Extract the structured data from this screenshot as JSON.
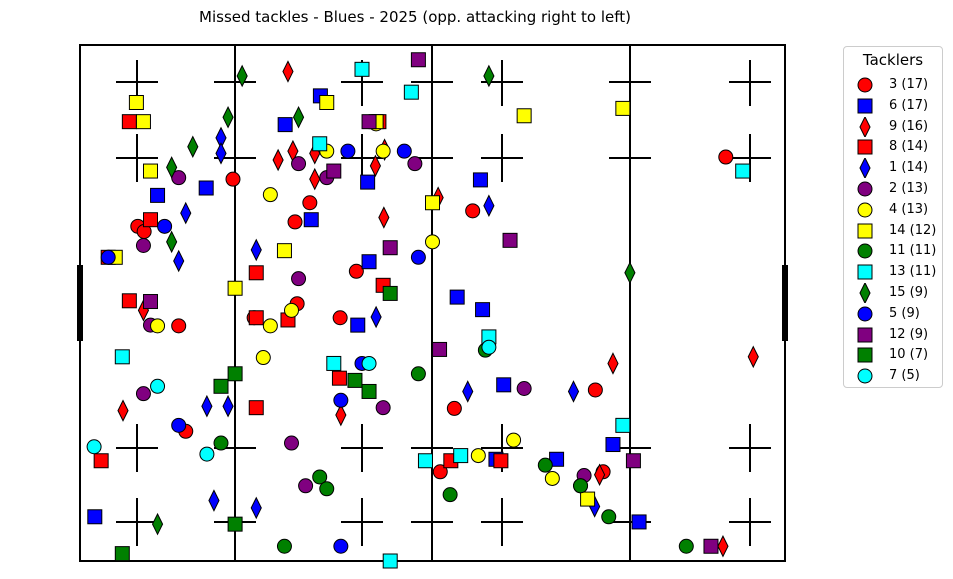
{
  "chart_data": {
    "type": "scatter",
    "title": "Missed tackles - Blues - 2025  (opp. attacking right to left)",
    "xlabel": "",
    "ylabel": "",
    "xlim": [
      0,
      100
    ],
    "ylim": [
      0,
      70
    ],
    "grid": false,
    "legend": {
      "title": "Tacklers",
      "placement": "right-outside-top"
    },
    "series": [
      {
        "name": "3 (17)",
        "marker": "circle",
        "color": "#ff0000",
        "points": [
          [
            21.7,
            51.8
          ],
          [
            8.2,
            45.4
          ],
          [
            9.1,
            44.7
          ],
          [
            30.5,
            46.0
          ],
          [
            30.8,
            34.9
          ],
          [
            32.6,
            48.6
          ],
          [
            36.9,
            33.0
          ],
          [
            24.7,
            33.0
          ],
          [
            14.0,
            31.9
          ],
          [
            39.2,
            39.3
          ],
          [
            55.7,
            47.5
          ],
          [
            53.1,
            20.7
          ],
          [
            73.1,
            23.2
          ],
          [
            15.0,
            17.6
          ],
          [
            51.1,
            12.1
          ],
          [
            91.6,
            54.8
          ],
          [
            74.2,
            12.1
          ]
        ]
      },
      {
        "name": "6 (17)",
        "marker": "square",
        "color": "#0000ff",
        "points": [
          [
            34.1,
            63.1
          ],
          [
            29.1,
            59.2
          ],
          [
            11.0,
            49.6
          ],
          [
            17.9,
            50.6
          ],
          [
            40.8,
            51.4
          ],
          [
            32.8,
            46.3
          ],
          [
            41.0,
            40.6
          ],
          [
            53.5,
            35.8
          ],
          [
            57.1,
            34.1
          ],
          [
            39.4,
            32.0
          ],
          [
            60.1,
            23.9
          ],
          [
            56.8,
            51.7
          ],
          [
            75.6,
            15.8
          ],
          [
            2.1,
            6.0
          ],
          [
            79.3,
            5.3
          ],
          [
            59.0,
            13.8
          ],
          [
            67.6,
            13.8
          ]
        ]
      },
      {
        "name": "9 (16)",
        "marker": "diamond",
        "color": "#ff0000",
        "points": [
          [
            29.5,
            66.4
          ],
          [
            28.1,
            54.4
          ],
          [
            33.3,
            55.3
          ],
          [
            30.2,
            55.6
          ],
          [
            33.3,
            51.8
          ],
          [
            41.9,
            53.6
          ],
          [
            43.2,
            55.8
          ],
          [
            50.8,
            49.3
          ],
          [
            43.1,
            46.6
          ],
          [
            9.0,
            34.0
          ],
          [
            6.1,
            20.4
          ],
          [
            37.0,
            19.8
          ],
          [
            75.6,
            26.8
          ],
          [
            95.5,
            27.7
          ],
          [
            73.7,
            11.7
          ],
          [
            91.2,
            2.0
          ]
        ]
      },
      {
        "name": "8 (14)",
        "marker": "square",
        "color": "#ff0000",
        "points": [
          [
            7.0,
            59.6
          ],
          [
            10.0,
            46.3
          ],
          [
            4.0,
            41.2
          ],
          [
            25.0,
            39.1
          ],
          [
            7.0,
            35.3
          ],
          [
            25.0,
            33.0
          ],
          [
            29.5,
            32.7
          ],
          [
            36.8,
            24.8
          ],
          [
            43.0,
            37.4
          ],
          [
            25.0,
            20.8
          ],
          [
            3.0,
            13.6
          ],
          [
            52.6,
            13.6
          ],
          [
            59.7,
            13.6
          ],
          [
            42.4,
            59.6
          ]
        ]
      },
      {
        "name": "1 (14)",
        "marker": "diamond",
        "color": "#0000ff",
        "points": [
          [
            20.0,
            57.4
          ],
          [
            20.0,
            55.3
          ],
          [
            15.0,
            47.2
          ],
          [
            25.0,
            42.2
          ],
          [
            14.0,
            40.7
          ],
          [
            42.0,
            33.1
          ],
          [
            18.0,
            21.0
          ],
          [
            55.0,
            23.0
          ],
          [
            70.0,
            23.0
          ],
          [
            73.0,
            7.4
          ],
          [
            19.0,
            8.2
          ],
          [
            25.0,
            7.2
          ],
          [
            58.0,
            48.2
          ],
          [
            21.0,
            21.0
          ]
        ]
      },
      {
        "name": "2 (13)",
        "marker": "circle",
        "color": "#800080",
        "points": [
          [
            14.0,
            52.0
          ],
          [
            31.0,
            53.9
          ],
          [
            35.0,
            52.0
          ],
          [
            47.5,
            53.9
          ],
          [
            9.0,
            42.8
          ],
          [
            31.0,
            38.3
          ],
          [
            10.0,
            32.0
          ],
          [
            9.0,
            22.7
          ],
          [
            43.0,
            20.8
          ],
          [
            30.0,
            16.0
          ],
          [
            32.0,
            10.2
          ],
          [
            63.0,
            23.4
          ],
          [
            71.5,
            11.6
          ]
        ]
      },
      {
        "name": "4 (13)",
        "marker": "circle",
        "color": "#ffff00",
        "points": [
          [
            42.0,
            59.3
          ],
          [
            35.0,
            55.6
          ],
          [
            43.0,
            55.6
          ],
          [
            27.0,
            49.7
          ],
          [
            50.0,
            43.3
          ],
          [
            30.0,
            34.0
          ],
          [
            27.0,
            31.9
          ],
          [
            11.0,
            31.9
          ],
          [
            26.0,
            27.6
          ],
          [
            61.5,
            16.4
          ],
          [
            56.5,
            14.3
          ],
          [
            67.0,
            11.2
          ],
          [
            71.0,
            10.2
          ]
        ]
      },
      {
        "name": "14 (12)",
        "marker": "square",
        "color": "#ffff00",
        "points": [
          [
            8.0,
            62.2
          ],
          [
            9.0,
            59.6
          ],
          [
            10.0,
            52.9
          ],
          [
            35.0,
            62.2
          ],
          [
            50.0,
            48.6
          ],
          [
            29.0,
            42.1
          ],
          [
            22.0,
            37.0
          ],
          [
            5.0,
            41.2
          ],
          [
            63.0,
            60.4
          ],
          [
            77.0,
            61.4
          ],
          [
            72.0,
            8.4
          ],
          [
            42.0,
            59.6
          ]
        ]
      },
      {
        "name": "11 (11)",
        "marker": "circle",
        "color": "#008000",
        "points": [
          [
            48.0,
            25.4
          ],
          [
            57.5,
            28.6
          ],
          [
            20.0,
            16.0
          ],
          [
            34.0,
            11.4
          ],
          [
            35.0,
            9.8
          ],
          [
            52.5,
            9.0
          ],
          [
            66.0,
            13.0
          ],
          [
            71.0,
            10.2
          ],
          [
            75.0,
            6.0
          ],
          [
            29.0,
            2.0
          ],
          [
            86.0,
            2.0
          ]
        ]
      },
      {
        "name": "13 (11)",
        "marker": "square",
        "color": "#00ffff",
        "points": [
          [
            40.0,
            66.7
          ],
          [
            47.0,
            63.6
          ],
          [
            34.0,
            56.6
          ],
          [
            94.0,
            52.9
          ],
          [
            58.0,
            30.4
          ],
          [
            6.0,
            27.7
          ],
          [
            36.0,
            26.8
          ],
          [
            49.0,
            13.6
          ],
          [
            54.0,
            14.3
          ],
          [
            77.0,
            18.4
          ],
          [
            44.0,
            0.0
          ]
        ]
      },
      {
        "name": "15 (9)",
        "marker": "diamond",
        "color": "#008000",
        "points": [
          [
            23.0,
            65.8
          ],
          [
            21.0,
            60.2
          ],
          [
            31.0,
            60.2
          ],
          [
            16.0,
            56.2
          ],
          [
            13.0,
            53.4
          ],
          [
            13.0,
            43.3
          ],
          [
            58.0,
            65.8
          ],
          [
            78.0,
            39.1
          ],
          [
            11.0,
            5.0
          ]
        ]
      },
      {
        "name": "5 (9)",
        "marker": "circle",
        "color": "#0000ff",
        "points": [
          [
            38.0,
            55.6
          ],
          [
            46.0,
            55.6
          ],
          [
            12.0,
            45.4
          ],
          [
            4.0,
            41.2
          ],
          [
            48.0,
            41.2
          ],
          [
            40.0,
            26.8
          ],
          [
            37.0,
            21.8
          ],
          [
            14.0,
            18.4
          ],
          [
            37.0,
            2.0
          ]
        ]
      },
      {
        "name": "12 (9)",
        "marker": "square",
        "color": "#800080",
        "points": [
          [
            48.0,
            68.0
          ],
          [
            36.0,
            52.9
          ],
          [
            44.0,
            42.5
          ],
          [
            61.0,
            43.5
          ],
          [
            10.0,
            35.2
          ],
          [
            51.0,
            28.7
          ],
          [
            78.5,
            13.6
          ],
          [
            89.5,
            2.0
          ],
          [
            41.0,
            59.6
          ]
        ]
      },
      {
        "name": "10 (7)",
        "marker": "square",
        "color": "#008000",
        "points": [
          [
            44.0,
            36.3
          ],
          [
            20.0,
            23.7
          ],
          [
            22.0,
            25.4
          ],
          [
            39.0,
            24.5
          ],
          [
            41.0,
            23.0
          ],
          [
            22.0,
            5.0
          ],
          [
            6.0,
            1.0
          ]
        ]
      },
      {
        "name": "7 (5)",
        "marker": "circle",
        "color": "#00ffff",
        "points": [
          [
            58.0,
            29.0
          ],
          [
            41.0,
            26.8
          ],
          [
            11.0,
            23.7
          ],
          [
            2.0,
            15.5
          ],
          [
            18.0,
            14.5
          ]
        ]
      }
    ]
  }
}
